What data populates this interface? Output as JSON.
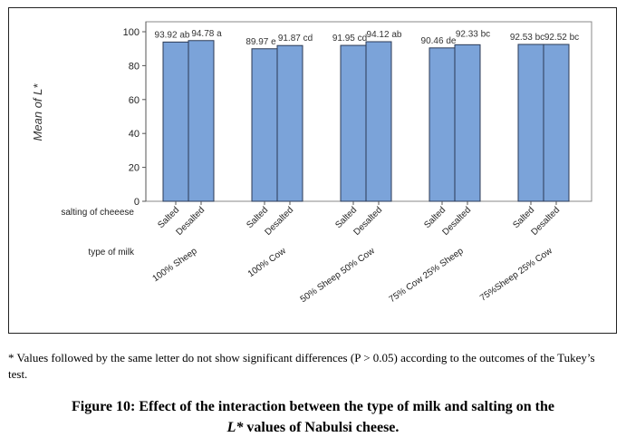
{
  "chart_data": {
    "type": "bar",
    "ylabel": "Mean of L*",
    "ylim": [
      0,
      100
    ],
    "yticks": [
      0,
      20,
      40,
      60,
      80,
      100
    ],
    "grid": false,
    "factor_labels": {
      "inner": "salting of cheeese",
      "outer": "type of milk"
    },
    "groups": [
      {
        "name": "100% Sheep",
        "bars": [
          {
            "category": "Salted",
            "value": 93.92,
            "label": "93.92 ab"
          },
          {
            "category": "Desalted",
            "value": 94.78,
            "label": "94.78 a"
          }
        ]
      },
      {
        "name": "100% Cow",
        "bars": [
          {
            "category": "Salted",
            "value": 89.97,
            "label": "89.97 e"
          },
          {
            "category": "Desalted",
            "value": 91.87,
            "label": "91.87 cd"
          }
        ]
      },
      {
        "name": "50% Sheep 50% Cow",
        "bars": [
          {
            "category": "Salted",
            "value": 91.95,
            "label": "91.95 cd"
          },
          {
            "category": "Desalted",
            "value": 94.12,
            "label": "94.12 ab"
          }
        ]
      },
      {
        "name": "75% Cow 25% Sheep",
        "bars": [
          {
            "category": "Salted",
            "value": 90.46,
            "label": "90.46 de"
          },
          {
            "category": "Desalted",
            "value": 92.33,
            "label": "92.33 bc"
          }
        ]
      },
      {
        "name": "75%Sheep 25% Cow",
        "bars": [
          {
            "category": "Salted",
            "value": 92.53,
            "label": "92.53 bc"
          },
          {
            "category": "Desalted",
            "value": 92.52,
            "label": "92.52 bc"
          }
        ]
      }
    ],
    "bar_color": "#7ba3d9",
    "bar_edge_color": "#2b3a55"
  },
  "footnote": "* Values followed by the same letter do not show significant differences (P > 0.05) according to the outcomes of the Tukey’s test.",
  "caption": {
    "line1": "Figure 10: Effect of the interaction between the type of milk and salting on the",
    "line2_italic": "L*",
    "line2_rest": " values of Nabulsi cheese."
  }
}
